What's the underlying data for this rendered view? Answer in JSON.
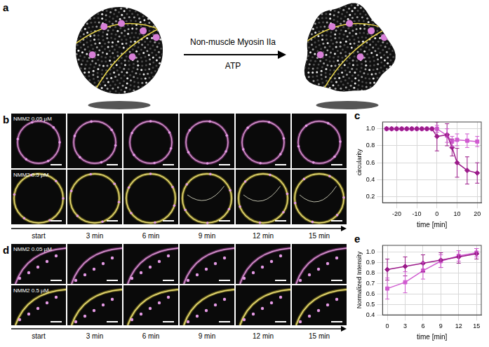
{
  "figure": {
    "panel_a": {
      "letter": "a",
      "arrow_text": "Non-muscle Myosin IIa",
      "arrow_subtext": "ATP"
    },
    "panel_b": {
      "letter": "b",
      "row_labels": [
        "NMM2 0.05 µM",
        "NMM2 0.5 µM"
      ],
      "time_labels": [
        "start",
        "3 min",
        "6 min",
        "9 min",
        "12 min",
        "15 min"
      ]
    },
    "panel_d": {
      "letter": "d",
      "row_labels": [
        "NMM2 0.05 µM",
        "NMM2 0.5 µM"
      ],
      "time_labels": [
        "start",
        "3 min",
        "6 min",
        "9 min",
        "12 min",
        "15 min"
      ]
    }
  },
  "chart_data": [
    {
      "panel": "c",
      "type": "line",
      "x_label": "time [min]",
      "y_label": "circularity",
      "x": [
        -25,
        -22.5,
        -20,
        -17.5,
        -15,
        -12.5,
        -10,
        -7.5,
        -5,
        -2.5,
        0,
        5,
        7.5,
        10,
        15,
        20
      ],
      "series": [
        {
          "color": "#9b1b8a",
          "marker": "diamond",
          "line_style": "solid",
          "values": [
            1,
            1,
            1,
            1,
            1,
            1,
            1,
            1,
            1,
            1,
            0.91,
            0.93,
            0.78,
            0.6,
            0.51,
            0.48
          ],
          "errors": [
            0,
            0,
            0,
            0,
            0,
            0,
            0,
            0,
            0,
            0,
            0.17,
            0.13,
            0.1,
            0.17,
            0.16,
            0.12
          ]
        },
        {
          "color": "#d05bd0",
          "marker": "square",
          "line_style": "solid",
          "values": [
            1,
            1,
            1,
            1,
            1,
            1,
            1,
            1,
            1,
            1,
            1,
            0.92,
            0.85,
            0.87,
            0.86,
            0.85
          ],
          "errors": [
            0,
            0,
            0,
            0,
            0,
            0,
            0,
            0,
            0,
            0,
            0.04,
            0.08,
            0.06,
            0.07,
            0.08,
            0.06
          ]
        }
      ],
      "xlim": [
        -27,
        22
      ],
      "xticks": [
        -20,
        -10,
        0,
        10,
        20
      ],
      "ylim": [
        0.13,
        1.08
      ],
      "yticks": [
        0.2,
        0.4,
        0.6,
        0.8,
        {
          "value": 1,
          "label": "1.0"
        }
      ],
      "grid": true
    },
    {
      "panel": "e",
      "type": "line",
      "x_label": "time [min]",
      "y_label": "Normalized Intensity",
      "x": [
        0,
        3,
        6,
        9,
        12,
        15
      ],
      "series": [
        {
          "color": "#9b1b8a",
          "marker": "diamond",
          "line_style": "solid",
          "values": [
            0.83,
            0.86,
            0.89,
            0.92,
            0.95,
            0.98
          ],
          "errors": [
            0.1,
            0.09,
            0.08,
            0.07,
            0.06,
            0.05
          ]
        },
        {
          "color": "#d05bd0",
          "marker": "square",
          "line_style": "solid",
          "values": [
            0.65,
            0.71,
            0.82,
            0.91,
            0.96,
            0.99
          ],
          "errors": [
            0.1,
            0.1,
            0.08,
            0.06,
            0.05,
            0.04
          ]
        }
      ],
      "xlim": [
        -0.8,
        15.8
      ],
      "xticks": [
        0,
        3,
        6,
        9,
        12,
        15
      ],
      "ylim": [
        0.4,
        1.06
      ],
      "yticks": [
        0.4,
        0.5,
        0.6,
        0.7,
        0.8,
        0.9,
        {
          "value": 1,
          "label": "1.0"
        }
      ],
      "grid": true
    }
  ]
}
